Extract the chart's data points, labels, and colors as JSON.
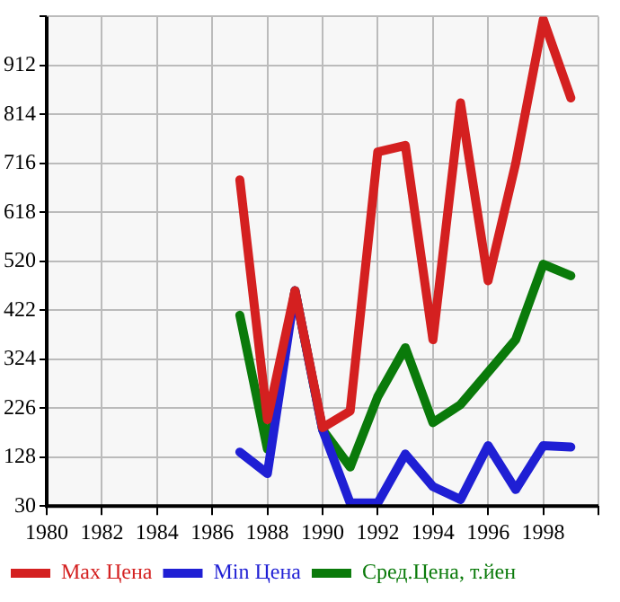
{
  "chart_data": {
    "type": "line",
    "x": [
      1987,
      1988,
      1989,
      1990,
      1991,
      1992,
      1993,
      1994,
      1995,
      1996,
      1997,
      1998,
      1999
    ],
    "series": [
      {
        "name": "Max Цена",
        "color": "#d42020",
        "values": [
          683,
          203,
          461,
          187,
          220,
          739,
          752,
          363,
          837,
          481,
          716,
          1004,
          847
        ]
      },
      {
        "name": "Min Цена",
        "color": "#1f1fd4",
        "values": [
          138,
          95,
          461,
          183,
          36,
          36,
          134,
          69,
          43,
          151,
          63,
          151,
          148
        ]
      },
      {
        "name": "Сред.Цена, т.йен",
        "color": "#0a7a0a",
        "values": [
          412,
          144,
          461,
          183,
          108,
          249,
          347,
          197,
          233,
          298,
          363,
          514,
          491
        ]
      }
    ],
    "xlim": [
      1980,
      2000
    ],
    "xticks": [
      1980,
      1982,
      1984,
      1986,
      1988,
      1990,
      1992,
      1994,
      1996,
      1998,
      {
        "value": 2000,
        "label": null
      }
    ],
    "ylim": [
      30,
      1010
    ],
    "yticks": [
      30,
      128,
      226,
      324,
      422,
      520,
      618,
      716,
      814,
      912,
      {
        "value": 1010,
        "label": null
      }
    ],
    "grid": true,
    "legend": "bottom",
    "marker": "none",
    "line_style": "solid"
  }
}
